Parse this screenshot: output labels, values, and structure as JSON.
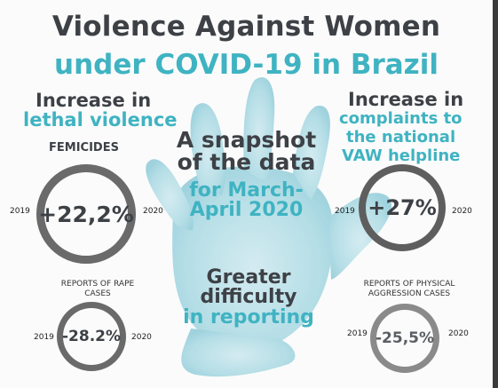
{
  "title": {
    "line1": "Violence Against Women",
    "line2": "under COVID-19 in Brazil"
  },
  "left_top": {
    "heading1": "Increase in",
    "heading2": "lethal violence",
    "label": "FEMICIDES",
    "value": "+22,2%",
    "year_from": "2019",
    "year_to": "2020"
  },
  "right_top": {
    "heading1": "Increase in",
    "heading2": "complaints to",
    "heading3": "the national",
    "heading4": "VAW helpline",
    "value": "+27%",
    "year_from": "2019",
    "year_to": "2020"
  },
  "center": {
    "line1": "A snapshot",
    "line2": "of the data",
    "line3": "for March-",
    "line4": "April 2020",
    "bottom1": "Greater",
    "bottom2": "difficulty",
    "bottom3": "in reporting"
  },
  "left_bottom": {
    "label1": "REPORTS OF RAPE",
    "label2": "CASES",
    "value": "-28.2%",
    "year_from": "2019",
    "year_to": "2020"
  },
  "right_bottom": {
    "label1": "REPORTS OF PHYSICAL",
    "label2": "AGGRESSION CASES",
    "value": "-25,5%",
    "year_from": "2019",
    "year_to": "2020"
  },
  "colors": {
    "dark": "#3d4146",
    "teal": "#3fb3c2",
    "hand": "#a9d9e3"
  },
  "icons": [
    "handprint-icon"
  ]
}
